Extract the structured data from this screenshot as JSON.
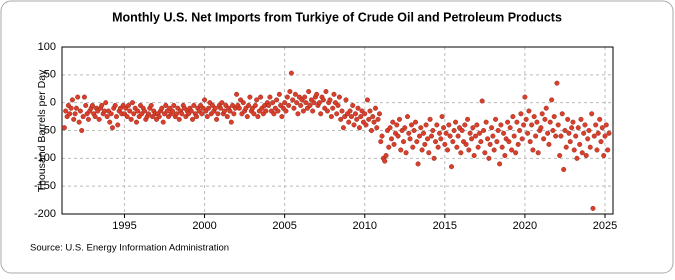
{
  "chart_data": {
    "type": "scatter",
    "title": "Monthly U.S. Net Imports from Turkiye of Crude Oil and Petroleum Products",
    "y_label": "Thousand Barrels per Day",
    "source": "Source: U.S. Energy Information Administration",
    "xlim": [
      1991.1,
      2025.5
    ],
    "ylim": [
      -200,
      100
    ],
    "xticks": [
      1995,
      2000,
      2005,
      2010,
      2015,
      2020,
      2025
    ],
    "yticks": [
      -200,
      -150,
      -100,
      -50,
      0,
      50,
      100
    ],
    "grid": true,
    "series": [
      {
        "name": "Net Imports",
        "color": "#d9402b",
        "x": [
          1991.25,
          1991.33,
          1991.42,
          1991.5,
          1991.58,
          1991.67,
          1991.75,
          1991.83,
          1991.92,
          1992,
          1992.08,
          1992.17,
          1992.25,
          1992.33,
          1992.42,
          1992.5,
          1992.58,
          1992.67,
          1992.75,
          1992.83,
          1992.92,
          1993,
          1993.08,
          1993.17,
          1993.25,
          1993.33,
          1993.42,
          1993.5,
          1993.58,
          1993.67,
          1993.75,
          1993.83,
          1993.92,
          1994,
          1994.08,
          1994.17,
          1994.25,
          1994.33,
          1994.42,
          1994.5,
          1994.58,
          1994.67,
          1994.75,
          1994.83,
          1994.92,
          1995,
          1995.08,
          1995.17,
          1995.25,
          1995.33,
          1995.42,
          1995.5,
          1995.58,
          1995.67,
          1995.75,
          1995.83,
          1995.92,
          1996,
          1996.08,
          1996.17,
          1996.25,
          1996.33,
          1996.42,
          1996.5,
          1996.58,
          1996.67,
          1996.75,
          1996.83,
          1996.92,
          1997,
          1997.08,
          1997.17,
          1997.25,
          1997.33,
          1997.42,
          1997.5,
          1997.58,
          1997.67,
          1997.75,
          1997.83,
          1997.92,
          1998,
          1998.08,
          1998.17,
          1998.25,
          1998.33,
          1998.42,
          1998.5,
          1998.58,
          1998.67,
          1998.75,
          1998.83,
          1998.92,
          1999,
          1999.08,
          1999.17,
          1999.25,
          1999.33,
          1999.42,
          1999.5,
          1999.58,
          1999.67,
          1999.75,
          1999.83,
          1999.92,
          2000,
          2000.08,
          2000.17,
          2000.25,
          2000.33,
          2000.42,
          2000.5,
          2000.58,
          2000.67,
          2000.75,
          2000.83,
          2000.92,
          2001,
          2001.08,
          2001.17,
          2001.25,
          2001.33,
          2001.42,
          2001.5,
          2001.58,
          2001.67,
          2001.75,
          2001.83,
          2001.92,
          2002,
          2002.08,
          2002.17,
          2002.25,
          2002.33,
          2002.42,
          2002.5,
          2002.58,
          2002.67,
          2002.75,
          2002.83,
          2002.92,
          2003,
          2003.08,
          2003.17,
          2003.25,
          2003.33,
          2003.42,
          2003.5,
          2003.58,
          2003.67,
          2003.75,
          2003.83,
          2003.92,
          2004,
          2004.08,
          2004.17,
          2004.25,
          2004.33,
          2004.42,
          2004.5,
          2004.58,
          2004.67,
          2004.75,
          2004.83,
          2004.92,
          2005,
          2005.08,
          2005.17,
          2005.25,
          2005.33,
          2005.42,
          2005.5,
          2005.58,
          2005.67,
          2005.75,
          2005.83,
          2005.92,
          2006,
          2006.08,
          2006.17,
          2006.25,
          2006.33,
          2006.42,
          2006.5,
          2006.58,
          2006.67,
          2006.75,
          2006.83,
          2006.92,
          2007,
          2007.08,
          2007.17,
          2007.25,
          2007.33,
          2007.42,
          2007.5,
          2007.58,
          2007.67,
          2007.75,
          2007.83,
          2007.92,
          2008,
          2008.08,
          2008.17,
          2008.25,
          2008.33,
          2008.42,
          2008.5,
          2008.58,
          2008.67,
          2008.75,
          2008.83,
          2008.92,
          2009,
          2009.08,
          2009.17,
          2009.25,
          2009.33,
          2009.42,
          2009.5,
          2009.58,
          2009.67,
          2009.75,
          2009.83,
          2009.92,
          2010,
          2010.08,
          2010.17,
          2010.25,
          2010.33,
          2010.42,
          2010.5,
          2010.58,
          2010.67,
          2010.75,
          2010.83,
          2010.92,
          2011,
          2011.08,
          2011.17,
          2011.25,
          2011.33,
          2011.42,
          2011.5,
          2011.58,
          2011.67,
          2011.75,
          2011.83,
          2011.92,
          2012,
          2012.08,
          2012.17,
          2012.25,
          2012.33,
          2012.42,
          2012.5,
          2012.58,
          2012.67,
          2012.75,
          2012.83,
          2012.92,
          2013,
          2013.08,
          2013.17,
          2013.25,
          2013.33,
          2013.42,
          2013.5,
          2013.58,
          2013.67,
          2013.75,
          2013.83,
          2013.92,
          2014,
          2014.08,
          2014.17,
          2014.25,
          2014.33,
          2014.42,
          2014.5,
          2014.58,
          2014.67,
          2014.75,
          2014.83,
          2014.92,
          2015,
          2015.08,
          2015.17,
          2015.25,
          2015.33,
          2015.42,
          2015.5,
          2015.58,
          2015.67,
          2015.75,
          2015.83,
          2015.92,
          2016,
          2016.08,
          2016.17,
          2016.25,
          2016.33,
          2016.42,
          2016.5,
          2016.58,
          2016.67,
          2016.75,
          2016.83,
          2016.92,
          2017,
          2017.08,
          2017.17,
          2017.25,
          2017.33,
          2017.42,
          2017.5,
          2017.58,
          2017.67,
          2017.75,
          2017.83,
          2017.92,
          2018,
          2018.08,
          2018.17,
          2018.25,
          2018.33,
          2018.42,
          2018.5,
          2018.58,
          2018.67,
          2018.75,
          2018.83,
          2018.92,
          2019,
          2019.08,
          2019.17,
          2019.25,
          2019.33,
          2019.42,
          2019.5,
          2019.58,
          2019.67,
          2019.75,
          2019.83,
          2019.92,
          2020,
          2020.08,
          2020.17,
          2020.25,
          2020.33,
          2020.42,
          2020.5,
          2020.58,
          2020.67,
          2020.75,
          2020.83,
          2020.92,
          2021,
          2021.08,
          2021.17,
          2021.25,
          2021.33,
          2021.42,
          2021.5,
          2021.58,
          2021.67,
          2021.75,
          2021.83,
          2021.92,
          2022,
          2022.08,
          2022.17,
          2022.25,
          2022.33,
          2022.42,
          2022.5,
          2022.58,
          2022.67,
          2022.75,
          2022.83,
          2022.92,
          2023,
          2023.08,
          2023.17,
          2023.25,
          2023.33,
          2023.42,
          2023.5,
          2023.58,
          2023.67,
          2023.75,
          2023.83,
          2023.92,
          2024,
          2024.08,
          2024.17,
          2024.25,
          2024.33,
          2024.42,
          2024.5,
          2024.58,
          2024.67,
          2024.75,
          2024.83,
          2024.92,
          2025,
          2025.08,
          2025.17,
          2025.25
        ],
        "values": [
          -45,
          -15,
          -25,
          -5,
          -20,
          -10,
          5,
          -30,
          -20,
          -10,
          10,
          -35,
          -15,
          -50,
          -25,
          10,
          -5,
          -20,
          -30,
          -15,
          -10,
          -5,
          -20,
          -25,
          -10,
          -15,
          -30,
          -10,
          -5,
          -20,
          -15,
          0,
          -25,
          -15,
          -35,
          -20,
          -45,
          -10,
          -5,
          -25,
          -40,
          -15,
          -10,
          -20,
          -5,
          -20,
          -10,
          -25,
          -5,
          -15,
          -30,
          0,
          -20,
          -10,
          -35,
          -15,
          -25,
          -5,
          -20,
          -10,
          -15,
          -30,
          -25,
          -20,
          -10,
          -5,
          -25,
          -15,
          -20,
          -30,
          -20,
          -25,
          -15,
          -10,
          -35,
          -20,
          -5,
          -15,
          -25,
          -10,
          -20,
          -15,
          -5,
          -25,
          -20,
          -10,
          -30,
          -15,
          -20,
          -5,
          -10,
          -25,
          -15,
          -20,
          -10,
          -15,
          -30,
          -5,
          -20,
          -25,
          -10,
          -15,
          -5,
          -20,
          -10,
          5,
          -15,
          -25,
          -10,
          0,
          -20,
          -5,
          -15,
          -10,
          -30,
          -20,
          -5,
          -10,
          0,
          -20,
          -15,
          -5,
          -25,
          -10,
          -15,
          -35,
          -5,
          -20,
          -10,
          15,
          -5,
          -10,
          5,
          -20,
          0,
          -15,
          -10,
          -25,
          -5,
          10,
          -15,
          -10,
          -20,
          -5,
          5,
          -25,
          -15,
          10,
          -10,
          -20,
          -5,
          -15,
          0,
          -5,
          10,
          -15,
          0,
          -20,
          -10,
          5,
          -15,
          15,
          -5,
          -25,
          -10,
          0,
          -15,
          10,
          -5,
          20,
          53,
          5,
          -10,
          15,
          0,
          -20,
          10,
          -5,
          5,
          -15,
          10,
          0,
          -10,
          20,
          -5,
          5,
          -15,
          0,
          10,
          15,
          -5,
          0,
          -20,
          10,
          5,
          -10,
          20,
          -15,
          0,
          5,
          -25,
          -10,
          15,
          0,
          -20,
          -5,
          10,
          -30,
          -15,
          -45,
          -25,
          5,
          -20,
          -35,
          -15,
          -25,
          -5,
          -40,
          -20,
          -30,
          -10,
          -45,
          -25,
          -15,
          -35,
          -20,
          -40,
          5,
          -30,
          -15,
          -50,
          -25,
          -35,
          -10,
          -45,
          -30,
          -20,
          -70,
          -60,
          -100,
          -105,
          -95,
          -50,
          -80,
          -45,
          -65,
          -35,
          -75,
          -55,
          -40,
          -60,
          -30,
          -85,
          -50,
          -70,
          -45,
          -90,
          -25,
          -55,
          -65,
          -40,
          -80,
          -50,
          -35,
          -70,
          -110,
          -60,
          -45,
          -85,
          -55,
          -75,
          -40,
          -65,
          -90,
          -30,
          -60,
          -50,
          -100,
          -70,
          -40,
          -80,
          -55,
          -65,
          -25,
          -45,
          -75,
          -55,
          -85,
          -40,
          -60,
          -115,
          -70,
          -50,
          -35,
          -80,
          -60,
          -45,
          -90,
          -50,
          -70,
          -40,
          -75,
          -30,
          -85,
          -55,
          -65,
          -45,
          -95,
          -60,
          -40,
          -80,
          -55,
          -70,
          3,
          -50,
          -90,
          -35,
          -65,
          -100,
          -75,
          -45,
          -60,
          -85,
          -30,
          -70,
          -50,
          -110,
          -40,
          -80,
          -55,
          -95,
          -65,
          -35,
          -70,
          -45,
          -85,
          -25,
          -60,
          -90,
          -35,
          -75,
          -50,
          -20,
          -65,
          -40,
          10,
          -30,
          -55,
          -15,
          -70,
          -40,
          -85,
          -25,
          -60,
          -35,
          -90,
          -50,
          -45,
          -20,
          -65,
          -30,
          -10,
          -55,
          -75,
          -35,
          5,
          -50,
          -25,
          -60,
          35,
          -40,
          -95,
          -60,
          -20,
          -120,
          -50,
          -80,
          -30,
          -55,
          -70,
          -45,
          -35,
          -85,
          -60,
          -100,
          -45,
          -75,
          -30,
          -90,
          -55,
          -40,
          -95,
          -65,
          -50,
          -80,
          -20,
          -190,
          -60,
          -40,
          -85,
          -55,
          -30,
          -70,
          -45,
          -95,
          -60,
          -40,
          -85,
          -55
        ]
      }
    ]
  }
}
